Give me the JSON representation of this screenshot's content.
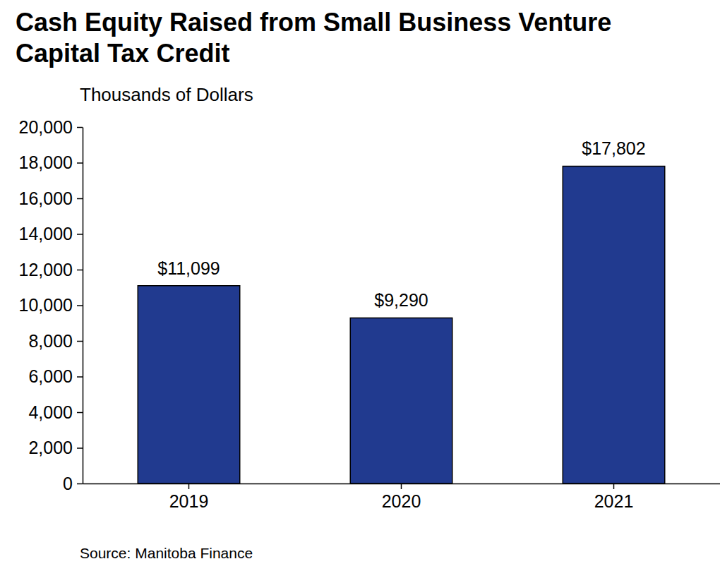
{
  "chart_data": {
    "type": "bar",
    "title": "Cash Equity Raised from Small Business Venture Capital Tax Credit",
    "y_label": "Thousands of Dollars",
    "source": "Source: Manitoba Finance",
    "categories": [
      "2019",
      "2020",
      "2021"
    ],
    "values": [
      11099,
      9290,
      17802
    ],
    "value_labels": [
      "$11,099",
      "$9,290",
      "$17,802"
    ],
    "color": "#213a8f",
    "ylim": [
      0,
      20000
    ],
    "yticks": [
      0,
      {
        "value": 2000,
        "label": "2,000"
      },
      {
        "value": 4000,
        "label": "4,000"
      },
      {
        "value": 6000,
        "label": "6,000"
      },
      {
        "value": 8000,
        "label": "8,000"
      },
      {
        "value": 10000,
        "label": "10,000"
      },
      {
        "value": 12000,
        "label": "12,000"
      },
      {
        "value": 14000,
        "label": "14,000"
      },
      {
        "value": 16000,
        "label": "16,000"
      },
      {
        "value": 18000,
        "label": "18,000"
      },
      {
        "value": 20000,
        "label": "20,000"
      }
    ],
    "grid": false,
    "data_labels": true
  }
}
